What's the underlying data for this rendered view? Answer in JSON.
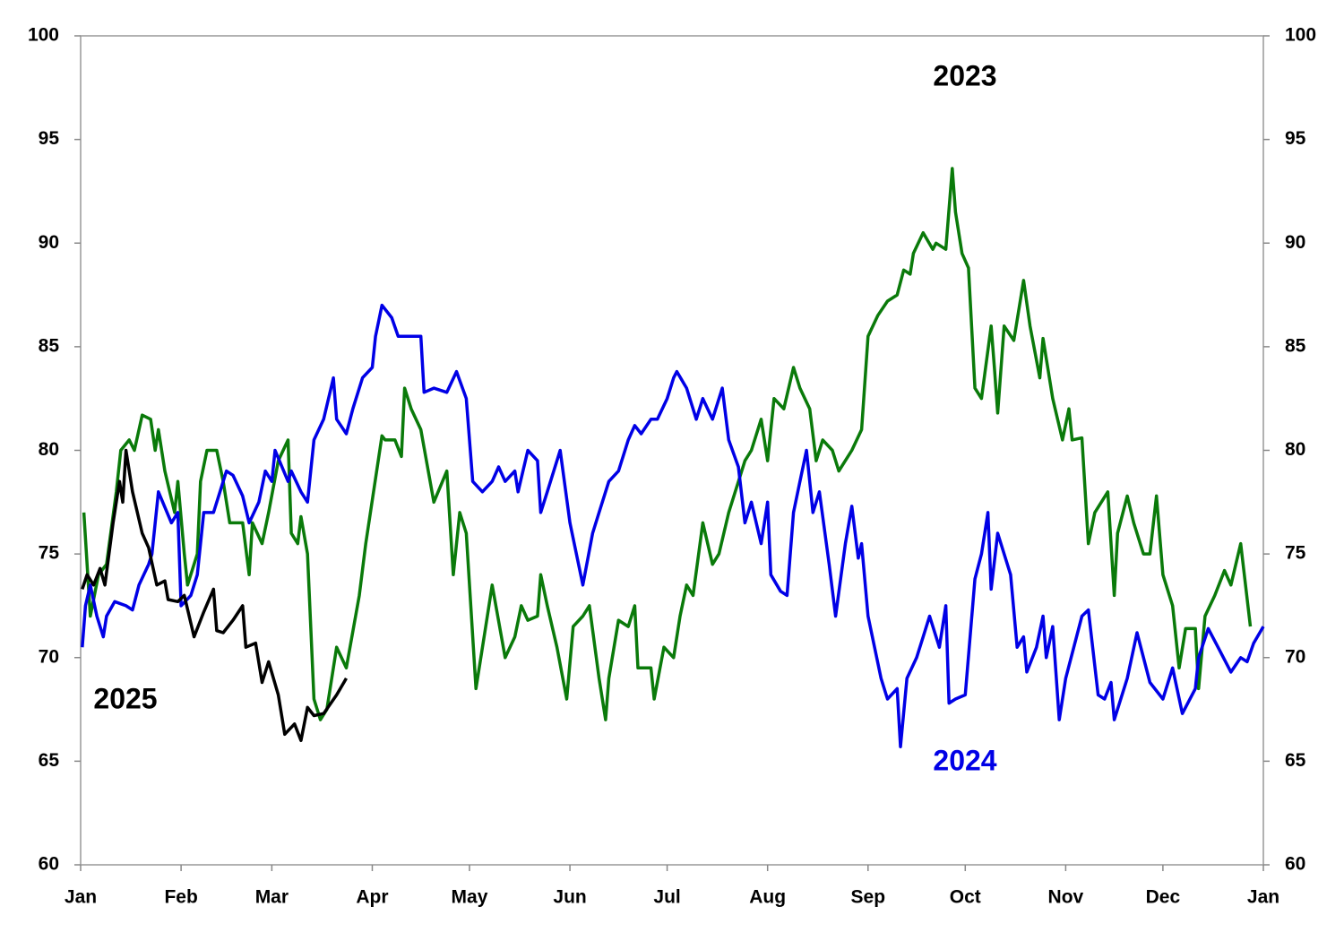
{
  "chart_data": {
    "type": "line",
    "xlim": [
      0,
      365
    ],
    "xticks": [
      {
        "value": 0,
        "label": "Jan"
      },
      {
        "value": 31,
        "label": "Feb"
      },
      {
        "value": 59,
        "label": "Mar"
      },
      {
        "value": 90,
        "label": "Apr"
      },
      {
        "value": 120,
        "label": "May"
      },
      {
        "value": 151,
        "label": "Jun"
      },
      {
        "value": 181,
        "label": "Jul"
      },
      {
        "value": 212,
        "label": "Aug"
      },
      {
        "value": 243,
        "label": "Sep"
      },
      {
        "value": 273,
        "label": "Oct"
      },
      {
        "value": 304,
        "label": "Nov"
      },
      {
        "value": 334,
        "label": "Dec"
      },
      {
        "value": 365,
        "label": "Jan"
      }
    ],
    "ylim": [
      60,
      100
    ],
    "yticks": [
      60,
      65,
      70,
      75,
      80,
      85,
      90,
      95,
      100
    ],
    "y2lim": [
      60,
      100
    ],
    "y2ticks": [
      60,
      65,
      70,
      75,
      80,
      85,
      90,
      95,
      100
    ],
    "series": [
      {
        "name": "2023",
        "color": "#0a7a0a",
        "x": [
          1,
          3,
          5.5,
          8,
          11,
          12.4,
          15,
          16.6,
          19,
          21.6,
          23,
          24,
          26,
          29,
          30,
          32,
          33,
          36,
          37,
          39,
          42,
          44,
          46,
          50,
          52,
          53,
          56,
          58,
          61,
          64,
          65,
          67,
          68,
          70,
          72,
          74,
          76,
          79,
          82,
          86,
          88,
          93,
          94,
          97,
          99,
          100,
          102,
          105,
          109,
          113,
          115,
          117,
          119,
          122,
          125,
          127,
          131,
          134,
          136,
          138,
          141,
          142,
          144,
          147,
          150,
          152,
          155,
          157,
          160,
          162,
          163,
          166,
          169,
          171,
          172,
          176,
          177,
          180,
          183,
          185,
          187,
          189,
          192,
          195,
          197,
          200,
          205,
          207,
          210,
          212,
          214,
          217,
          220,
          222,
          225,
          227,
          229,
          232,
          234,
          238,
          241,
          243,
          246,
          249,
          252,
          254,
          256,
          257,
          260,
          263,
          264,
          267,
          269,
          270,
          272,
          274,
          276,
          278,
          281,
          282,
          283,
          285,
          288,
          291,
          293,
          296,
          297,
          300,
          303,
          305,
          306,
          309,
          311,
          313,
          317,
          319,
          320,
          323,
          325,
          328,
          330,
          332,
          334,
          337,
          339,
          341,
          344,
          345,
          347,
          350,
          353,
          355,
          358,
          361
        ],
        "values": [
          77,
          72,
          74,
          74.5,
          78,
          80,
          80.5,
          80,
          81.7,
          81.5,
          80,
          81,
          79,
          77,
          78.5,
          75,
          73.5,
          75,
          78.5,
          80,
          80,
          78.5,
          76.5,
          76.5,
          74,
          76.5,
          75.5,
          77,
          79.5,
          80.5,
          76,
          75.5,
          76.8,
          75,
          68,
          67,
          67.5,
          70.5,
          69.5,
          73,
          75.5,
          80.7,
          80.5,
          80.5,
          79.7,
          83,
          82,
          81,
          77.5,
          79,
          74,
          77,
          76,
          68.5,
          71.5,
          73.5,
          70,
          71,
          72.5,
          71.8,
          72,
          74,
          72.5,
          70.5,
          68,
          71.5,
          72,
          72.5,
          69,
          67,
          69,
          71.8,
          71.5,
          72.5,
          69.5,
          69.5,
          68,
          70.5,
          70,
          72,
          73.5,
          73,
          76.5,
          74.5,
          75,
          77,
          79.5,
          80,
          81.5,
          79.5,
          82.5,
          82,
          84,
          83,
          82,
          79.5,
          80.5,
          80,
          79,
          80,
          81,
          85.5,
          86.5,
          87.2,
          87.5,
          88.7,
          88.5,
          89.5,
          90.5,
          89.7,
          90,
          89.7,
          93.6,
          91.5,
          89.5,
          88.8,
          83,
          82.5,
          86,
          84,
          81.8,
          86,
          85.3,
          88.2,
          86,
          83.5,
          85.4,
          82.5,
          80.5,
          82,
          80.5,
          80.6,
          75.5,
          77,
          78,
          73,
          76,
          77.8,
          76.5,
          75,
          75,
          77.8,
          74,
          72.5,
          69.5,
          71.4,
          71.4,
          68.5,
          72,
          73,
          74.2,
          73.5,
          75.5,
          71.5
        ]
      },
      {
        "name": "2024",
        "color": "#0000e6",
        "x": [
          0.5,
          1.5,
          3,
          5,
          7,
          8,
          10.5,
          14,
          16,
          18,
          21,
          22,
          24,
          28,
          30,
          31,
          34,
          36,
          38,
          41,
          43,
          45,
          47,
          50,
          52,
          55,
          57,
          59,
          60,
          64,
          65,
          68,
          70,
          72,
          75,
          78,
          79,
          82,
          84,
          87,
          90,
          91,
          93,
          96,
          98,
          100,
          105,
          106,
          109,
          113,
          116,
          119,
          121,
          124,
          127,
          129,
          131,
          134,
          135,
          138,
          141,
          142,
          144,
          148,
          151,
          155,
          158,
          160,
          163,
          166,
          169,
          171,
          173,
          176,
          178,
          181,
          183,
          184,
          187,
          190,
          192,
          195,
          198,
          200,
          203,
          205,
          207,
          210,
          212,
          213,
          216,
          218,
          220,
          222,
          224,
          226,
          228,
          231,
          233,
          236,
          238,
          240,
          241,
          243,
          247,
          249,
          252,
          253,
          255,
          258,
          260,
          262,
          265,
          267,
          268,
          270,
          273,
          276,
          278,
          280,
          281,
          283,
          287,
          289,
          291,
          292,
          295,
          297,
          298,
          300,
          302,
          304,
          309,
          311,
          314,
          316,
          318,
          319,
          323,
          326,
          330,
          334,
          337,
          340,
          344,
          345,
          348,
          351,
          355,
          358,
          360,
          362,
          365
        ],
        "values": [
          70.5,
          72.5,
          73.5,
          72,
          71,
          72,
          72.7,
          72.5,
          72.3,
          73.5,
          74.5,
          75,
          78,
          76.5,
          77,
          72.5,
          73,
          74,
          77,
          77,
          78,
          79,
          78.8,
          77.8,
          76.5,
          77.5,
          79,
          78.5,
          80,
          78.5,
          79,
          78,
          77.5,
          80.5,
          81.5,
          83.5,
          81.5,
          80.8,
          82,
          83.5,
          84,
          85.5,
          87,
          86.4,
          85.5,
          85.5,
          85.5,
          82.8,
          83,
          82.8,
          83.8,
          82.5,
          78.5,
          78,
          78.5,
          79.2,
          78.5,
          79,
          78,
          80,
          79.5,
          77,
          78,
          80,
          76.5,
          73.5,
          76,
          77,
          78.5,
          79,
          80.5,
          81.2,
          80.8,
          81.5,
          81.5,
          82.5,
          83.5,
          83.8,
          83,
          81.5,
          82.5,
          81.5,
          83,
          80.5,
          79.2,
          76.5,
          77.5,
          75.5,
          77.5,
          74,
          73.2,
          73,
          77,
          78.5,
          80,
          77,
          78,
          74.5,
          72,
          75.5,
          77.3,
          74.8,
          75.5,
          72,
          69,
          68,
          68.5,
          65.7,
          69,
          70,
          71,
          72,
          70.5,
          72.5,
          67.8,
          68,
          68.2,
          73.8,
          75,
          77,
          73.3,
          76,
          74,
          70.5,
          71,
          69.3,
          70.5,
          72,
          70,
          71.5,
          67,
          69,
          72,
          72.3,
          68.2,
          68,
          68.8,
          67,
          69,
          71.2,
          68.8,
          68,
          69.5,
          67.3,
          68.5,
          70,
          71.4,
          70.5,
          69.3,
          70,
          69.8,
          70.7,
          71.5
        ]
      },
      {
        "name": "2025",
        "color": "#000000",
        "x": [
          0.5,
          2,
          4,
          6,
          7.5,
          10,
          12,
          13,
          14,
          16,
          19,
          21,
          23.5,
          26,
          27,
          30,
          32,
          35,
          38,
          41,
          42,
          44,
          47,
          50,
          51,
          54,
          56,
          58,
          61,
          63,
          66,
          68,
          70,
          72,
          75,
          79,
          82
        ],
        "values": [
          73.3,
          74,
          73.5,
          74.3,
          73.5,
          76.5,
          78.5,
          77.5,
          80,
          78,
          76,
          75.3,
          73.5,
          73.7,
          72.8,
          72.7,
          73,
          71,
          72.2,
          73.3,
          71.3,
          71.2,
          71.8,
          72.5,
          70.5,
          70.7,
          68.8,
          69.8,
          68.2,
          66.3,
          66.8,
          66,
          67.6,
          67.2,
          67.3,
          68.2,
          69
        ]
      }
    ]
  }
}
